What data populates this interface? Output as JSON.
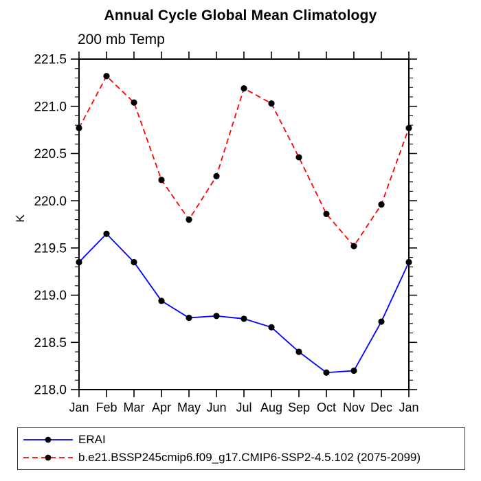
{
  "title": "Annual Cycle Global Mean Climatology",
  "subtitle": "200 mb Temp",
  "chart_data": {
    "type": "line",
    "categories": [
      "Jan",
      "Feb",
      "Mar",
      "Apr",
      "May",
      "Jun",
      "Jul",
      "Aug",
      "Sep",
      "Oct",
      "Nov",
      "Dec",
      "Jan"
    ],
    "xlabel": "",
    "ylabel": "K",
    "ylim": [
      218.0,
      221.5
    ],
    "ytick_step": 0.5,
    "yminor_step": 0.1,
    "grid": false,
    "legend_position": "bottom-left",
    "axis_color": "#000000",
    "series": [
      {
        "name": "ERAI",
        "color": "#0000ff",
        "style": "solid",
        "marker": "circle",
        "marker_color": "#000000",
        "values": [
          219.35,
          219.65,
          219.35,
          218.94,
          218.76,
          218.78,
          218.75,
          218.66,
          218.4,
          218.18,
          218.2,
          218.72,
          219.35
        ]
      },
      {
        "name": "b.e21.BSSP245cmip6.f09_g17.CMIP6-SSP2-4.5.102 (2075-2099)",
        "color": "#ff0000",
        "style": "dashed",
        "marker": "circle",
        "marker_color": "#000000",
        "values": [
          220.77,
          221.32,
          221.04,
          220.22,
          219.8,
          220.26,
          221.19,
          221.03,
          220.46,
          219.86,
          219.52,
          219.96,
          220.77
        ]
      }
    ]
  }
}
